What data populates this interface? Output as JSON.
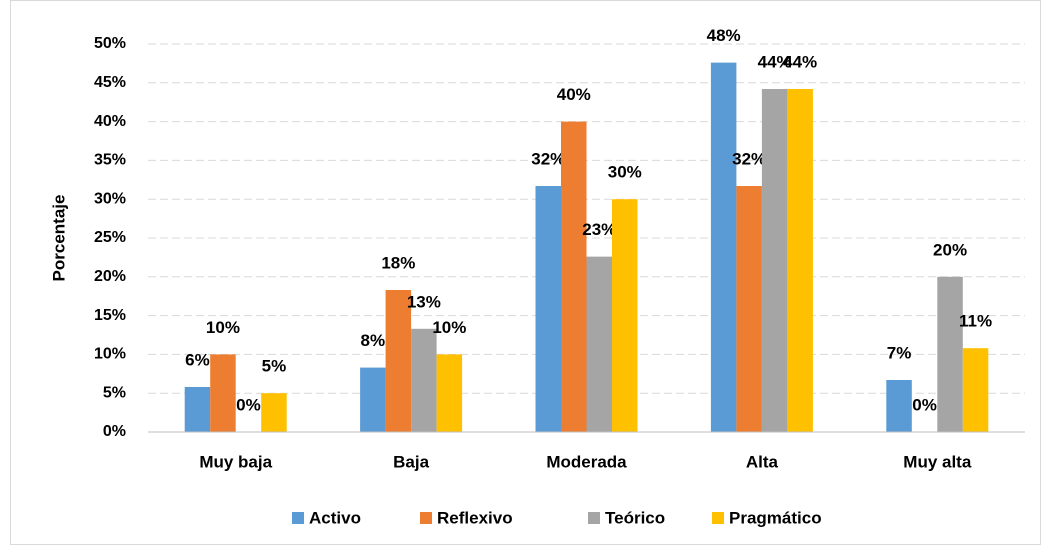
{
  "chart_data": {
    "type": "bar",
    "y_label": "Porcentaje",
    "categories": [
      "Muy baja",
      "Baja",
      "Moderada",
      "Alta",
      "Muy alta"
    ],
    "series": [
      {
        "name": "Activo",
        "color": "#5b9bd5",
        "values": [
          5.8,
          8.3,
          31.7,
          47.6,
          6.7
        ],
        "value_labels": [
          "6%",
          "8%",
          "32%",
          "48%",
          "7%"
        ]
      },
      {
        "name": "Reflexivo",
        "color": "#ed7d31",
        "values": [
          10,
          18.3,
          40,
          31.7,
          0
        ],
        "value_labels": [
          "10%",
          "18%",
          "40%",
          "32%",
          "0%"
        ]
      },
      {
        "name": "Teórico",
        "color": "#a5a5a5",
        "values": [
          0,
          13.3,
          22.6,
          44.2,
          20
        ],
        "value_labels": [
          "0%",
          "13%",
          "23%",
          "44%",
          "20%"
        ]
      },
      {
        "name": "Pragmático",
        "color": "#ffc000",
        "values": [
          5,
          10,
          30,
          44.2,
          10.8
        ],
        "value_labels": [
          "5%",
          "10%",
          "30%",
          "44%",
          "11%"
        ]
      }
    ],
    "ylim": [
      0,
      50
    ],
    "yticks": [
      {
        "value": 0,
        "label": "0%"
      },
      {
        "value": 5,
        "label": "5%"
      },
      {
        "value": 10,
        "label": "10%"
      },
      {
        "value": 15,
        "label": "15%"
      },
      {
        "value": 20,
        "label": "20%"
      },
      {
        "value": 25,
        "label": "25%"
      },
      {
        "value": 30,
        "label": "30%"
      },
      {
        "value": 35,
        "label": "35%"
      },
      {
        "value": 40,
        "label": "40%"
      },
      {
        "value": 45,
        "label": "45%"
      },
      {
        "value": 50,
        "label": "50%"
      }
    ],
    "grid": true,
    "legend": "bottom"
  }
}
